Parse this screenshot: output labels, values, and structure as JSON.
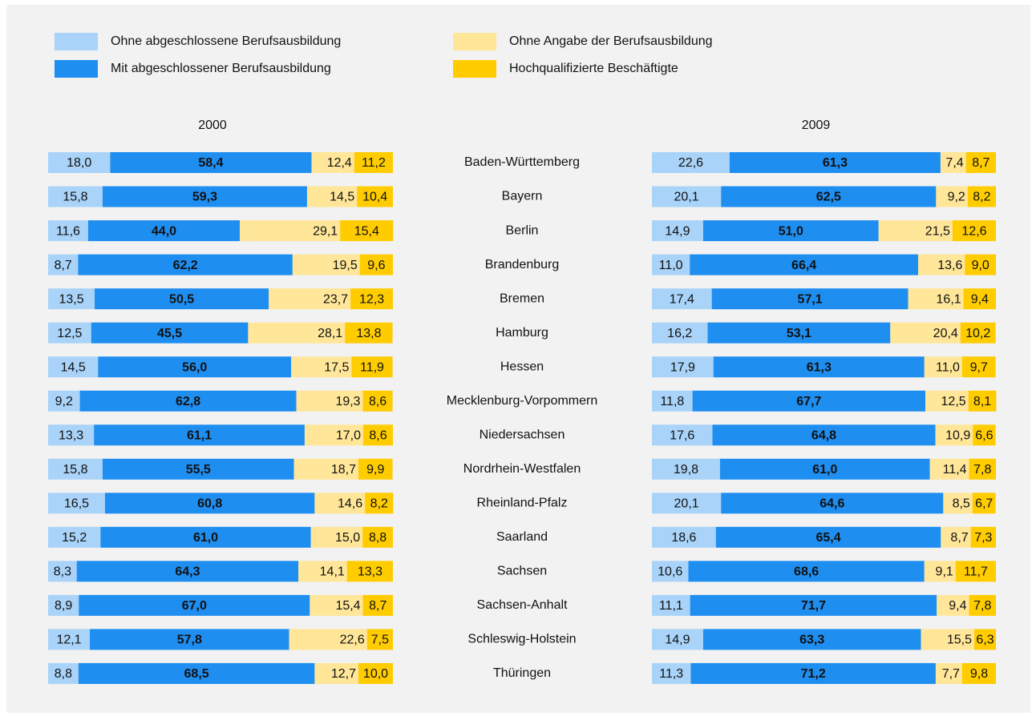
{
  "chart_data": {
    "type": "bar",
    "orientation": "horizontal",
    "stacked": true,
    "xlim": [
      0,
      100
    ],
    "categories": [
      "Baden-Württemberg",
      "Bayern",
      "Berlin",
      "Brandenburg",
      "Bremen",
      "Hamburg",
      "Hessen",
      "Mecklenburg-Vorpommern",
      "Niedersachsen",
      "Nordrhein-Westfalen",
      "Rheinland-Pfalz",
      "Saarland",
      "Sachsen",
      "Sachsen-Anhalt",
      "Schleswig-Holstein",
      "Thüringen"
    ],
    "legend": [
      {
        "name": "Ohne abgeschlossene Berufsausbildung",
        "color": "#a9d3f8"
      },
      {
        "name": "Mit abgeschlossener Berufsausbildung",
        "color": "#1f8ef1"
      },
      {
        "name": "Ohne Angabe der Berufsausbildung",
        "color": "#ffe699"
      },
      {
        "name": "Hochqualifizierte Beschäftigte",
        "color": "#ffcc00"
      }
    ],
    "panels": [
      {
        "title": "2000",
        "series": [
          {
            "values": [
              18.0,
              15.8,
              11.6,
              8.7,
              13.5,
              12.5,
              14.5,
              9.2,
              13.3,
              15.8,
              16.5,
              15.2,
              8.3,
              8.9,
              12.1,
              8.8
            ],
            "value_labels": [
              "18,0",
              "15,8",
              "11,6",
              "8,7",
              "13,5",
              "12,5",
              "14,5",
              "9,2",
              "13,3",
              "15,8",
              "16,5",
              "15,2",
              "8,3",
              "8,9",
              "12,1",
              "8,8"
            ]
          },
          {
            "values": [
              58.4,
              59.3,
              44.0,
              62.2,
              50.5,
              45.5,
              56.0,
              62.8,
              61.1,
              55.5,
              60.8,
              61.0,
              64.3,
              67.0,
              57.8,
              68.5
            ],
            "value_labels": [
              "58,4",
              "59,3",
              "44,0",
              "62,2",
              "50,5",
              "45,5",
              "56,0",
              "62,8",
              "61,1",
              "55,5",
              "60,8",
              "61,0",
              "64,3",
              "67,0",
              "57,8",
              "68,5"
            ]
          },
          {
            "values": [
              12.4,
              14.5,
              29.1,
              19.5,
              23.7,
              28.1,
              17.5,
              19.3,
              17.0,
              18.7,
              14.6,
              15.0,
              14.1,
              15.4,
              22.6,
              12.7
            ],
            "value_labels": [
              "12,4",
              "14,5",
              "29,1",
              "19,5",
              "23,7",
              "28,1",
              "17,5",
              "19,3",
              "17,0",
              "18,7",
              "14,6",
              "15,0",
              "14,1",
              "15,4",
              "22,6",
              "12,7"
            ]
          },
          {
            "values": [
              11.2,
              10.4,
              15.4,
              9.6,
              12.3,
              13.8,
              11.9,
              8.6,
              8.6,
              9.9,
              8.2,
              8.8,
              13.3,
              8.7,
              7.5,
              10.0
            ],
            "value_labels": [
              "11,2",
              "10,4",
              "15,4",
              "9,6",
              "12,3",
              "13,8",
              "11,9",
              "8,6",
              "8,6",
              "9,9",
              "8,2",
              "8,8",
              "13,3",
              "8,7",
              "7,5",
              "10,0"
            ]
          }
        ]
      },
      {
        "title": "2009",
        "series": [
          {
            "values": [
              22.6,
              20.1,
              14.9,
              11.0,
              17.4,
              16.2,
              17.9,
              11.8,
              17.6,
              19.8,
              20.1,
              18.6,
              10.6,
              11.1,
              14.9,
              11.3
            ],
            "value_labels": [
              "22,6",
              "20,1",
              "14,9",
              "11,0",
              "17,4",
              "16,2",
              "17,9",
              "11,8",
              "17,6",
              "19,8",
              "20,1",
              "18,6",
              "10,6",
              "11,1",
              "14,9",
              "11,3"
            ]
          },
          {
            "values": [
              61.3,
              62.5,
              51.0,
              66.4,
              57.1,
              53.1,
              61.3,
              67.7,
              64.8,
              61.0,
              64.6,
              65.4,
              68.6,
              71.7,
              63.3,
              71.2
            ],
            "value_labels": [
              "61,3",
              "62,5",
              "51,0",
              "66,4",
              "57,1",
              "53,1",
              "61,3",
              "67,7",
              "64,8",
              "61,0",
              "64,6",
              "65,4",
              "68,6",
              "71,7",
              "63,3",
              "71,2"
            ]
          },
          {
            "values": [
              7.4,
              9.2,
              21.5,
              13.6,
              16.1,
              20.4,
              11.0,
              12.5,
              10.9,
              11.4,
              8.5,
              8.7,
              9.1,
              9.4,
              15.5,
              7.7
            ],
            "value_labels": [
              "7,4",
              "9,2",
              "21,5",
              "13,6",
              "16,1",
              "20,4",
              "11,0",
              "12,5",
              "10,9",
              "11,4",
              "8,5",
              "8,7",
              "9,1",
              "9,4",
              "15,5",
              "7,7"
            ]
          },
          {
            "values": [
              8.7,
              8.2,
              12.6,
              9.0,
              9.4,
              10.2,
              9.7,
              8.1,
              6.6,
              7.8,
              6.7,
              7.3,
              11.7,
              7.8,
              6.3,
              9.8
            ],
            "value_labels": [
              "8,7",
              "8,2",
              "12,6",
              "9,0",
              "9,4",
              "10,2",
              "9,7",
              "8,1",
              "6,6",
              "7,8",
              "6,7",
              "7,3",
              "11,7",
              "7,8",
              "6,3",
              "9,8"
            ]
          }
        ]
      }
    ]
  }
}
